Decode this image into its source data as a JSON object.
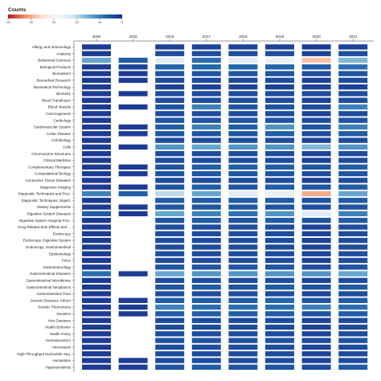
{
  "legend": {
    "title": "Counts",
    "ticks": [
      "-50",
      "-40",
      "-30",
      "-20",
      "-10",
      "0"
    ],
    "tick_values": [
      -50,
      -40,
      -30,
      -20,
      -10,
      0
    ],
    "colors": [
      "#b2182b",
      "#ef8a62",
      "#fddbc7",
      "#f7f7f7",
      "#d1e5f0",
      "#67a9cf",
      "#2166ac",
      "#1a2a8c"
    ]
  },
  "chart_data": {
    "type": "heatmap",
    "title": "",
    "xlabel": "",
    "ylabel": "",
    "color_scale": {
      "title": "Counts",
      "min": -50,
      "max": 0
    },
    "columns": [
      "2000",
      "2015",
      "2016",
      "2017",
      "2018",
      "2019",
      "2020",
      "2021"
    ],
    "rows": [
      "Allergy and Immunology",
      "Anatomy",
      "Behavioral Sciences",
      "Biological Products",
      "Biomarkers",
      "Biomedical Research",
      "Biomedical Technology",
      "Biometry",
      "Blood Transfusion",
      "Blood Vessels",
      "Carcinogenesis",
      "Cardiology",
      "Cardiovascular System",
      "Celiac Disease",
      "Cell Biology",
      "Cells",
      "Chromosome Structures",
      "Clinical Medicine",
      "Complementary Therapies",
      "Computational Biology",
      "Connective Tissue Diseases",
      "Diagnostic Imaging",
      "Diagnostic Techniques and Proc.",
      "Diagnostic Techniques, Digest.",
      "Dietary Supplements",
      "Digestive System Diseases",
      "Digestive System Surgical Proc.",
      "Drug-Related Side Effects and ...",
      "Endoscopy",
      "Endoscopy, Digestive System",
      "Endoscopy, Gastrointestinal",
      "Epidemiology",
      "Fetus",
      "Gastroenterology",
      "Gastrointestinal Diseases",
      "Gastrointestinal Microbiome",
      "Gastrointestinal Neoplasms",
      "Gastrointestinal Tract",
      "Genetic Diseases, Inborn",
      "Genetic Phenomena",
      "Genetics",
      "Hair Diseases",
      "Health Behavior",
      "Health Policy",
      "Hemodynamics",
      "Hemostasis",
      "High-Throughput Nucleotide Seq.",
      "Humanities",
      "Hypersensitivity"
    ],
    "values": [
      [
        -2,
        null,
        -3,
        -3,
        -3,
        -3,
        -2,
        -3
      ],
      [
        -2,
        null,
        -4,
        -4,
        -4,
        -4,
        -3,
        -4
      ],
      [
        -14,
        -6,
        -24,
        -8,
        -24,
        -26,
        -38,
        -16
      ],
      [
        -2,
        -3,
        -7,
        -7,
        -7,
        -7,
        -6,
        -8
      ],
      [
        -2,
        -2,
        -5,
        -5,
        -5,
        -5,
        -4,
        -5
      ],
      [
        -2,
        -2,
        -4,
        -4,
        -4,
        -4,
        -3,
        -4
      ],
      [
        -2,
        null,
        -3,
        -3,
        -3,
        -3,
        -3,
        -3
      ],
      [
        -2,
        -2,
        -4,
        -4,
        -4,
        -4,
        -4,
        -4
      ],
      [
        -2,
        null,
        -4,
        -4,
        -4,
        -4,
        -3,
        -4
      ],
      [
        -2,
        -2,
        -5,
        -10,
        -5,
        -5,
        -4,
        -10
      ],
      [
        -2,
        null,
        -4,
        -4,
        -4,
        -4,
        -3,
        -4
      ],
      [
        -2,
        null,
        -5,
        -5,
        -5,
        -5,
        -4,
        -5
      ],
      [
        -2,
        -2,
        -6,
        -10,
        -6,
        -12,
        -5,
        -10
      ],
      [
        -2,
        -2,
        -5,
        -5,
        -5,
        -6,
        -4,
        -6
      ],
      [
        -2,
        null,
        -4,
        -4,
        -4,
        -4,
        -3,
        -4
      ],
      [
        -2,
        -2,
        -12,
        -14,
        -12,
        -12,
        -16,
        -12
      ],
      [
        -2,
        null,
        -4,
        -4,
        -4,
        -4,
        -3,
        -4
      ],
      [
        -2,
        null,
        -4,
        -4,
        -4,
        -4,
        -3,
        -4
      ],
      [
        -2,
        -2,
        -5,
        -6,
        -6,
        -6,
        -5,
        -6
      ],
      [
        -2,
        -2,
        -5,
        -5,
        -5,
        -5,
        -4,
        -5
      ],
      [
        -2,
        null,
        -4,
        -4,
        -4,
        -4,
        -3,
        -4
      ],
      [
        -2,
        -2,
        -5,
        -6,
        -5,
        -6,
        -5,
        -6
      ],
      [
        -10,
        -6,
        -20,
        -14,
        -24,
        -26,
        -40,
        -14
      ],
      [
        -2,
        null,
        -6,
        -6,
        -6,
        -6,
        -5,
        -6
      ],
      [
        -2,
        -2,
        -5,
        -5,
        -5,
        -5,
        -4,
        -5
      ],
      [
        -6,
        -2,
        -14,
        -10,
        -8,
        -12,
        -24,
        -10
      ],
      [
        -2,
        null,
        -5,
        -6,
        -5,
        -6,
        -5,
        -6
      ],
      [
        -2,
        null,
        -4,
        -4,
        -4,
        -4,
        -3,
        -4
      ],
      [
        -2,
        null,
        -4,
        -4,
        -4,
        -4,
        -3,
        -4
      ],
      [
        -2,
        null,
        -4,
        -4,
        -4,
        -4,
        -3,
        -4
      ],
      [
        -2,
        null,
        -4,
        -4,
        -4,
        -4,
        -3,
        -4
      ],
      [
        -2,
        null,
        -4,
        -4,
        -4,
        -4,
        -3,
        -4
      ],
      [
        -2,
        null,
        -4,
        -4,
        -4,
        -4,
        -3,
        -4
      ],
      [
        -2,
        null,
        -5,
        -5,
        -5,
        -5,
        -4,
        -5
      ],
      [
        -8,
        -2,
        -14,
        -12,
        -12,
        -12,
        -12,
        -14
      ],
      [
        -2,
        null,
        -4,
        -4,
        -4,
        -4,
        -3,
        -4
      ],
      [
        -2,
        null,
        -5,
        -6,
        -5,
        -6,
        -5,
        -6
      ],
      [
        -2,
        null,
        -4,
        -4,
        -4,
        -4,
        -3,
        -4
      ],
      [
        -2,
        -2,
        -6,
        -6,
        -6,
        -7,
        -5,
        -6
      ],
      [
        -2,
        -2,
        -10,
        -8,
        -8,
        -8,
        -10,
        -8
      ],
      [
        -2,
        -2,
        -6,
        -6,
        -6,
        -6,
        -5,
        -6
      ],
      [
        -2,
        null,
        -4,
        -4,
        -4,
        -4,
        -3,
        -4
      ],
      [
        -2,
        null,
        -4,
        -4,
        -4,
        -4,
        -3,
        -4
      ],
      [
        -2,
        null,
        -4,
        -4,
        -4,
        -4,
        -3,
        -4
      ],
      [
        -2,
        null,
        -5,
        -5,
        -5,
        -5,
        -4,
        -5
      ],
      [
        -2,
        null,
        -4,
        -4,
        -4,
        -4,
        -3,
        -4
      ],
      [
        -2,
        null,
        -4,
        -4,
        -4,
        -4,
        -3,
        -4
      ],
      [
        -2,
        -2,
        -4,
        -4,
        -4,
        -4,
        -3,
        -4
      ],
      [
        -2,
        -2,
        -5,
        -6,
        -5,
        -5,
        -4,
        -6
      ]
    ]
  }
}
